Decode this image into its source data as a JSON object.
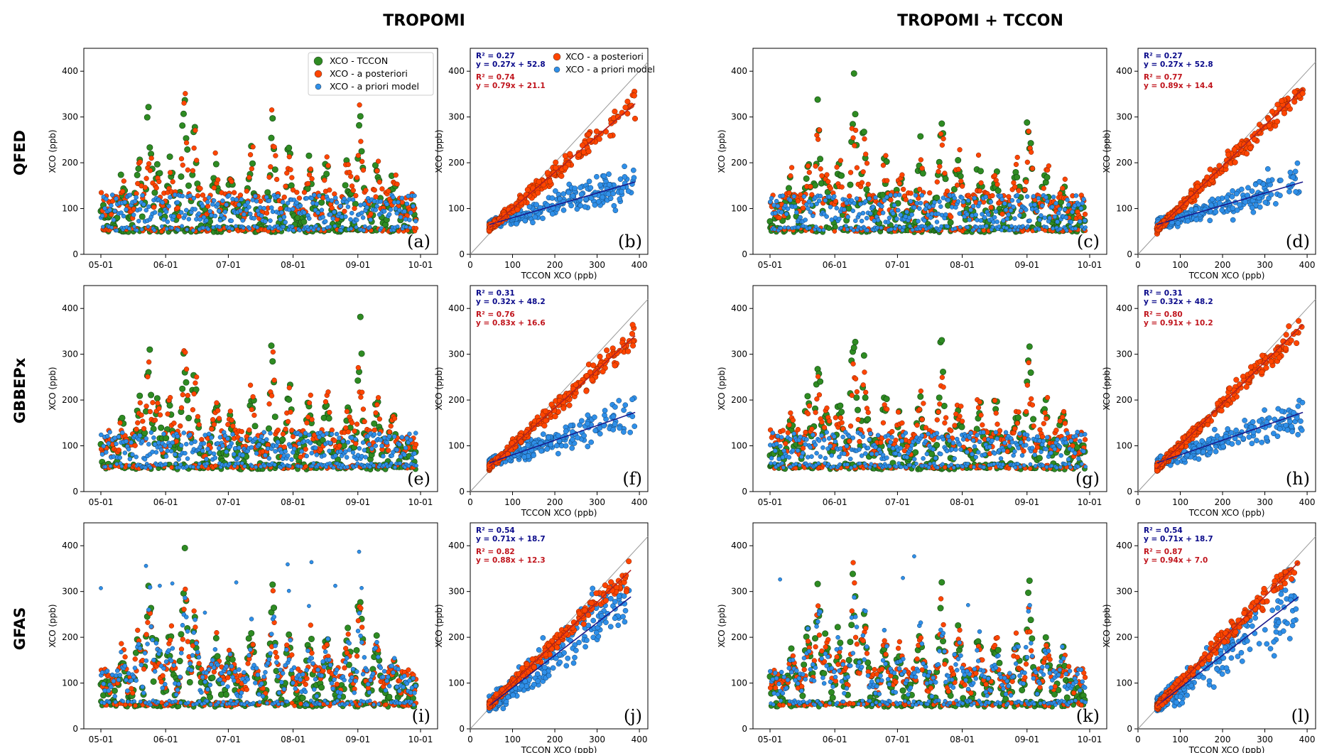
{
  "figure": {
    "column_titles": [
      "TROPOMI",
      "TROPOMI + TCCON"
    ],
    "row_titles": [
      "QFED",
      "GBBEPx",
      "GFAS"
    ],
    "colors": {
      "tccon": "#2e8b22",
      "posteriori": "#ff4500",
      "priori": "#2f8fe8",
      "fit_blue": "#1a1a8c",
      "fit_red": "#b22222",
      "stat_blue": "#0a0a8a",
      "stat_red": "#c0141c"
    }
  },
  "chart_data": [
    {
      "type": "scatter",
      "panel": "(a)",
      "kind": "timeseries",
      "row": 0,
      "col": 0,
      "xlabel": "",
      "ylabel": "XCO (ppb)",
      "x_ticks": [
        "05-01",
        "06-01",
        "07-01",
        "08-01",
        "09-01",
        "10-01"
      ],
      "y_ticks": [
        "0",
        "100",
        "200",
        "300",
        "400"
      ],
      "ylim": [
        0,
        450
      ],
      "legend": {
        "placement": "top-right",
        "entries": [
          "XCO - TCCON",
          "XCO - a posteriori",
          "XCO - a priori model"
        ]
      },
      "series": [
        {
          "name": "XCO - TCCON",
          "color": "#2e8b22",
          "peaks": [
            [
              "05-24",
              330
            ],
            [
              "06-10",
              385
            ],
            [
              "07-22",
              338
            ],
            [
              "08-06",
              220
            ],
            [
              "09-03",
              342
            ]
          ]
        },
        {
          "name": "XCO - a posteriori",
          "color": "#ff4500",
          "peaks": [
            [
              "05-24",
              310
            ],
            [
              "06-10",
              300
            ],
            [
              "07-22",
              250
            ],
            [
              "09-03",
              270
            ]
          ]
        },
        {
          "name": "XCO - a priori model",
          "color": "#2f8fe8",
          "range": [
            50,
            170
          ]
        }
      ]
    },
    {
      "type": "scatter",
      "panel": "(b)",
      "kind": "correlation",
      "row": 0,
      "col": 1,
      "xlabel": "TCCON XCO (ppb)",
      "ylabel": "XCO (ppb)",
      "x_ticks": [
        "0",
        "100",
        "200",
        "300",
        "400"
      ],
      "y_ticks": [
        "0",
        "100",
        "200",
        "300",
        "400"
      ],
      "xlim": [
        0,
        420
      ],
      "ylim": [
        0,
        450
      ],
      "legend": {
        "placement": "top-right",
        "entries": [
          "XCO - a posteriori",
          "XCO - a priori model"
        ]
      },
      "stats": {
        "blue": [
          "R² = 0.27",
          "y = 0.27x + 52.8"
        ],
        "red": [
          "R² = 0.74",
          "y = 0.79x + 21.1"
        ]
      },
      "fits": {
        "blue": {
          "slope": 0.27,
          "intercept": 52.8
        },
        "red": {
          "slope": 0.79,
          "intercept": 21.1
        }
      },
      "x_max": 390
    },
    {
      "type": "scatter",
      "panel": "(c)",
      "kind": "timeseries",
      "row": 0,
      "col": 2,
      "xlabel": "",
      "ylabel": "XCO (ppb)",
      "x_ticks": [
        "05-01",
        "06-01",
        "07-01",
        "08-01",
        "09-01",
        "10-01"
      ],
      "y_ticks": [
        "0",
        "100",
        "200",
        "300",
        "400"
      ],
      "ylim": [
        0,
        450
      ]
    },
    {
      "type": "scatter",
      "panel": "(d)",
      "kind": "correlation",
      "row": 0,
      "col": 3,
      "xlabel": "TCCON XCO (ppb)",
      "ylabel": "XCO (ppb)",
      "x_ticks": [
        "0",
        "100",
        "200",
        "300",
        "400"
      ],
      "y_ticks": [
        "0",
        "100",
        "200",
        "300",
        "400"
      ],
      "xlim": [
        0,
        420
      ],
      "ylim": [
        0,
        450
      ],
      "stats": {
        "blue": [
          "R² = 0.27",
          "y = 0.27x + 52.8"
        ],
        "red": [
          "R² = 0.77",
          "y = 0.89x + 14.4"
        ]
      },
      "fits": {
        "blue": {
          "slope": 0.27,
          "intercept": 52.8
        },
        "red": {
          "slope": 0.89,
          "intercept": 14.4
        }
      },
      "x_max": 390
    },
    {
      "type": "scatter",
      "panel": "(e)",
      "kind": "timeseries",
      "row": 1,
      "col": 0,
      "xlabel": "",
      "ylabel": "XCO (ppb)",
      "x_ticks": [
        "05-01",
        "06-01",
        "07-01",
        "08-01",
        "09-01",
        "10-01"
      ],
      "y_ticks": [
        "0",
        "100",
        "200",
        "300",
        "400"
      ],
      "ylim": [
        0,
        450
      ]
    },
    {
      "type": "scatter",
      "panel": "(f)",
      "kind": "correlation",
      "row": 1,
      "col": 1,
      "xlabel": "TCCON XCO (ppb)",
      "ylabel": "XCO (ppb)",
      "x_ticks": [
        "0",
        "100",
        "200",
        "300",
        "400"
      ],
      "y_ticks": [
        "0",
        "100",
        "200",
        "300",
        "400"
      ],
      "xlim": [
        0,
        420
      ],
      "ylim": [
        0,
        450
      ],
      "stats": {
        "blue": [
          "R² = 0.31",
          "y = 0.32x + 48.2"
        ],
        "red": [
          "R² = 0.76",
          "y = 0.83x + 16.6"
        ]
      },
      "fits": {
        "blue": {
          "slope": 0.32,
          "intercept": 48.2
        },
        "red": {
          "slope": 0.83,
          "intercept": 16.6
        }
      },
      "x_max": 390
    },
    {
      "type": "scatter",
      "panel": "(g)",
      "kind": "timeseries",
      "row": 1,
      "col": 2,
      "xlabel": "",
      "ylabel": "XCO (ppb)",
      "x_ticks": [
        "05-01",
        "06-01",
        "07-01",
        "08-01",
        "09-01",
        "10-01"
      ],
      "y_ticks": [
        "0",
        "100",
        "200",
        "300",
        "400"
      ],
      "ylim": [
        0,
        450
      ]
    },
    {
      "type": "scatter",
      "panel": "(h)",
      "kind": "correlation",
      "row": 1,
      "col": 3,
      "xlabel": "TCCON XCO (ppb)",
      "ylabel": "XCO (ppb)",
      "x_ticks": [
        "0",
        "100",
        "200",
        "300",
        "400"
      ],
      "y_ticks": [
        "0",
        "100",
        "200",
        "300",
        "400"
      ],
      "xlim": [
        0,
        420
      ],
      "ylim": [
        0,
        450
      ],
      "stats": {
        "blue": [
          "R² = 0.31",
          "y = 0.32x + 48.2"
        ],
        "red": [
          "R² = 0.80",
          "y = 0.91x + 10.2"
        ]
      },
      "fits": {
        "blue": {
          "slope": 0.32,
          "intercept": 48.2
        },
        "red": {
          "slope": 0.91,
          "intercept": 10.2
        }
      },
      "x_max": 390
    },
    {
      "type": "scatter",
      "panel": "(i)",
      "kind": "timeseries",
      "row": 2,
      "col": 0,
      "xlabel": "",
      "ylabel": "XCO (ppb)",
      "x_ticks": [
        "05-01",
        "06-01",
        "07-01",
        "08-01",
        "09-01",
        "10-01"
      ],
      "y_ticks": [
        "0",
        "100",
        "200",
        "300",
        "400"
      ],
      "ylim": [
        0,
        450
      ]
    },
    {
      "type": "scatter",
      "panel": "(j)",
      "kind": "correlation",
      "row": 2,
      "col": 1,
      "xlabel": "TCCON XCO (ppb)",
      "ylabel": "XCO (ppb)",
      "x_ticks": [
        "0",
        "100",
        "200",
        "300",
        "400"
      ],
      "y_ticks": [
        "0",
        "100",
        "200",
        "300",
        "400"
      ],
      "xlim": [
        0,
        420
      ],
      "ylim": [
        0,
        450
      ],
      "stats": {
        "blue": [
          "R² = 0.54",
          "y = 0.71x + 18.7"
        ],
        "red": [
          "R² = 0.82",
          "y = 0.88x + 12.3"
        ]
      },
      "fits": {
        "blue": {
          "slope": 0.71,
          "intercept": 18.7
        },
        "red": {
          "slope": 0.88,
          "intercept": 12.3
        }
      },
      "x_max": 380
    },
    {
      "type": "scatter",
      "panel": "(k)",
      "kind": "timeseries",
      "row": 2,
      "col": 2,
      "xlabel": "",
      "ylabel": "XCO (ppb)",
      "x_ticks": [
        "05-01",
        "06-01",
        "07-01",
        "08-01",
        "09-01",
        "10-01"
      ],
      "y_ticks": [
        "0",
        "100",
        "200",
        "300",
        "400"
      ],
      "ylim": [
        0,
        450
      ]
    },
    {
      "type": "scatter",
      "panel": "(l)",
      "kind": "correlation",
      "row": 2,
      "col": 3,
      "xlabel": "TCCON XCO (ppb)",
      "ylabel": "XCO (ppb)",
      "x_ticks": [
        "0",
        "100",
        "200",
        "300",
        "400"
      ],
      "y_ticks": [
        "0",
        "100",
        "200",
        "300",
        "400"
      ],
      "xlim": [
        0,
        420
      ],
      "ylim": [
        0,
        450
      ],
      "stats": {
        "blue": [
          "R² = 0.54",
          "y = 0.71x + 18.7"
        ],
        "red": [
          "R² = 0.87",
          "y = 0.94x + 7.0"
        ]
      },
      "fits": {
        "blue": {
          "slope": 0.71,
          "intercept": 18.7
        },
        "red": {
          "slope": 0.94,
          "intercept": 7.0
        }
      },
      "x_max": 380
    }
  ]
}
